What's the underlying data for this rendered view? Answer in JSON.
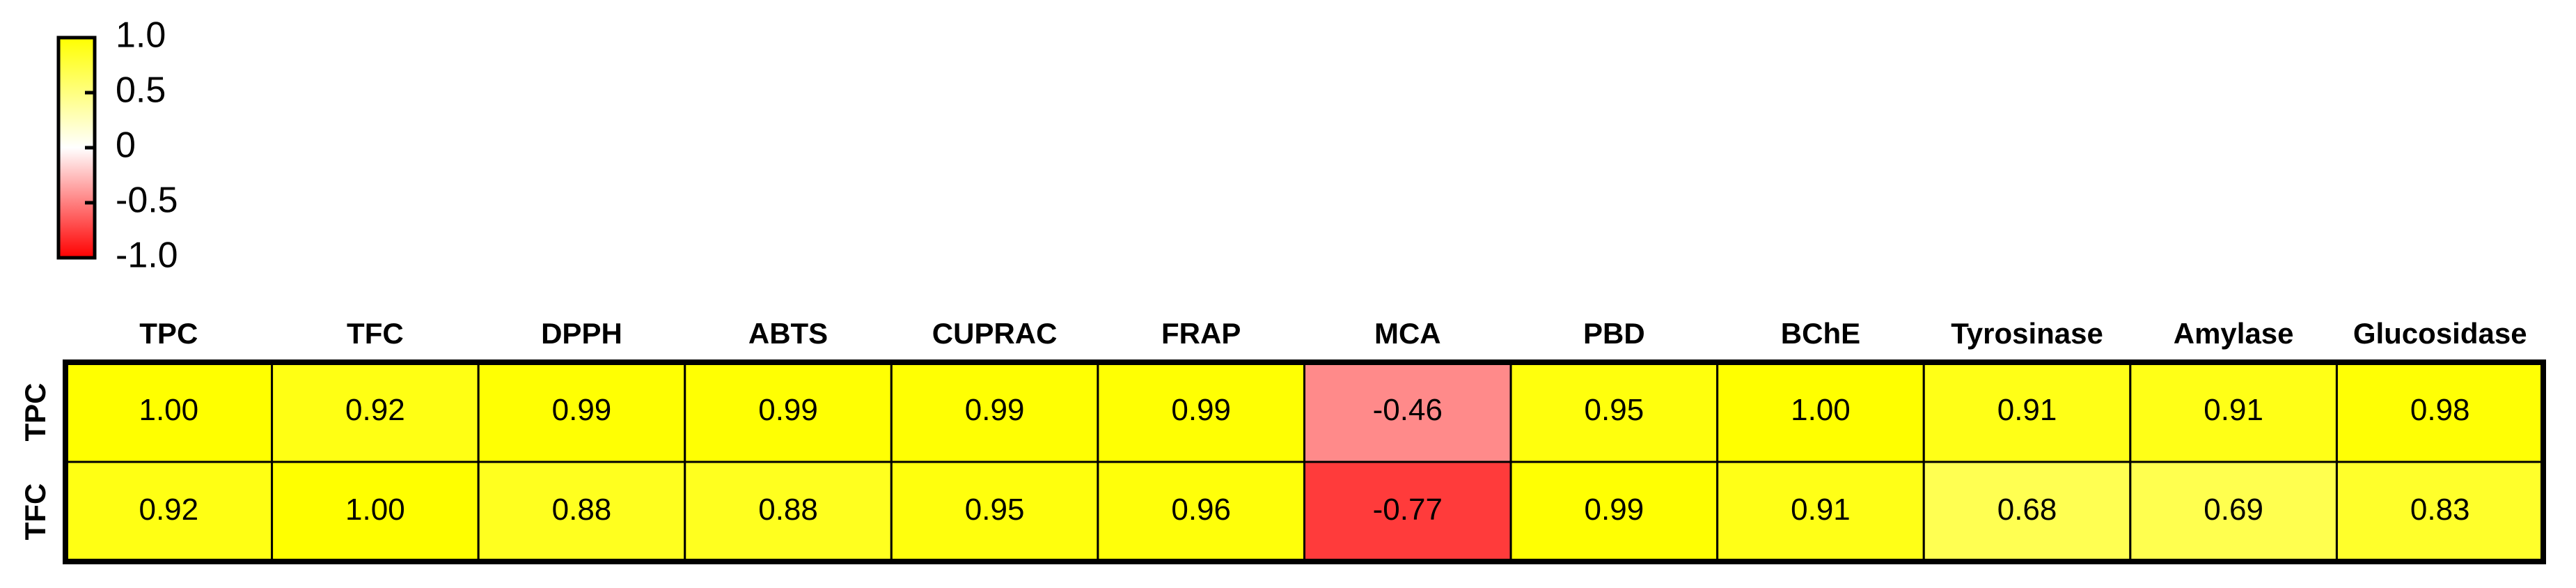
{
  "chart_data": {
    "type": "heatmap",
    "categories": [
      "TPC",
      "TFC",
      "DPPH",
      "ABTS",
      "CUPRAC",
      "FRAP",
      "MCA",
      "PBD",
      "BChE",
      "Tyrosinase",
      "Amylase",
      "Glucosidase"
    ],
    "rows": [
      "TPC",
      "TFC"
    ],
    "values": [
      [
        1,
        0.92,
        0.99,
        0.99,
        0.99,
        0.99,
        -0.46,
        0.95,
        1,
        0.91,
        0.91,
        0.98
      ],
      [
        0.92,
        1,
        0.88,
        0.88,
        0.95,
        0.96,
        -0.77,
        0.99,
        0.91,
        0.68,
        0.69,
        0.83
      ]
    ],
    "value_labels": [
      [
        "1.00",
        "0.92",
        "0.99",
        "0.99",
        "0.99",
        "0.99",
        "-0.46",
        "0.95",
        "1.00",
        "0.91",
        "0.91",
        "0.98"
      ],
      [
        "0.92",
        "1.00",
        "0.88",
        "0.88",
        "0.95",
        "0.96",
        "-0.77",
        "0.99",
        "0.91",
        "0.68",
        "0.69",
        "0.83"
      ]
    ],
    "colorscale": [
      "#ff0000",
      "#ffffff",
      "#ffff00"
    ],
    "zlim": [
      -1,
      1
    ],
    "zticks": [
      {
        "value": 1,
        "label": "1.0"
      },
      0.5,
      0,
      -0.5,
      {
        "value": -1,
        "label": "-1.0"
      }
    ]
  }
}
